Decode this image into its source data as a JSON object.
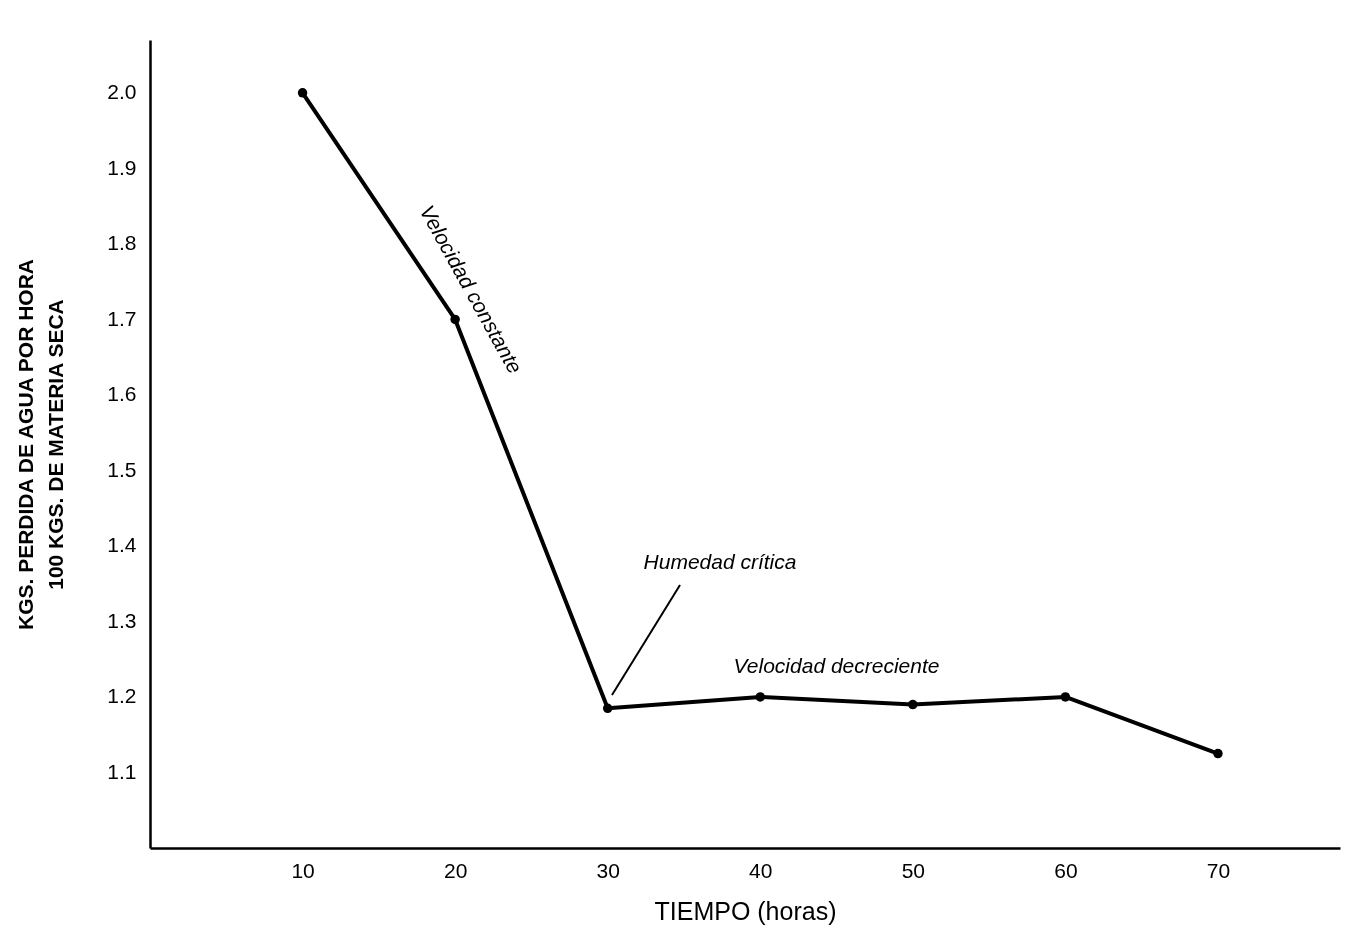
{
  "chart_data": {
    "type": "line",
    "xlabel": "TIEMPO (horas)",
    "ylabel": [
      "KGS. PERDIDA DE AGUA POR HORA",
      "100 KGS. DE MATERIA SECA"
    ],
    "x": [
      10,
      20,
      30,
      40,
      50,
      60,
      70
    ],
    "series": [
      {
        "color": "#000000",
        "values": [
          2.0,
          1.7,
          1.185,
          1.2,
          1.19,
          1.2,
          1.125
        ]
      }
    ],
    "xlim": [
      0,
      78
    ],
    "xticks": [
      10,
      20,
      30,
      40,
      50,
      60,
      70
    ],
    "ylim": [
      1.0,
      2.07
    ],
    "yticks": [
      1.1,
      1.2,
      1.3,
      1.4,
      1.5,
      1.6,
      1.7,
      1.8,
      1.9,
      {
        "value": 2,
        "label": "2.0"
      }
    ],
    "grid": false,
    "marker": "circle",
    "line_style": "solid",
    "annotations": [
      "Velocidad constante",
      "Humedad crítica",
      {
        "text": "Velocidad decreciente",
        "x": 45,
        "y": 1.2
      }
    ]
  }
}
